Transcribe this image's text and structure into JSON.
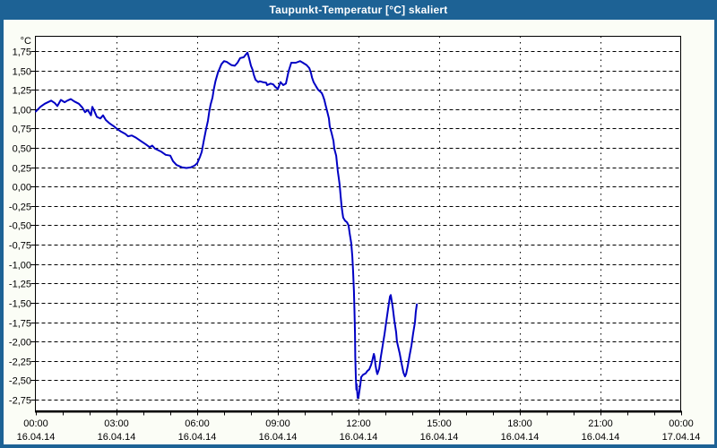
{
  "window": {
    "title": "Taupunkt-Temperatur [°C] skaliert"
  },
  "colors": {
    "titlebar": "#1d6295",
    "window_background": "#fbfdf6",
    "plot_background": "#ffffff",
    "line": "#0000c4",
    "grid": "#000000",
    "text": "#000000"
  },
  "chart_data": {
    "type": "line",
    "title": "Taupunkt-Temperatur [°C] skaliert",
    "unit_label": "°C",
    "xlabel": "",
    "ylabel": "°C",
    "ylim": [
      -2.75,
      1.75
    ],
    "ytick_step": 0.25,
    "grid": "dashed, horizontal and vertical",
    "legend_position": "none",
    "yticks": [
      {
        "v": 1.75,
        "label": "1,75"
      },
      {
        "v": 1.5,
        "label": "1,50"
      },
      {
        "v": 1.25,
        "label": "1,25"
      },
      {
        "v": 1.0,
        "label": "1,00"
      },
      {
        "v": 0.75,
        "label": "0,75"
      },
      {
        "v": 0.5,
        "label": "0,50"
      },
      {
        "v": 0.25,
        "label": "0,25"
      },
      {
        "v": 0.0,
        "label": "0,00"
      },
      {
        "v": -0.25,
        "label": "-0,25"
      },
      {
        "v": -0.5,
        "label": "-0,50"
      },
      {
        "v": -0.75,
        "label": "-0,75"
      },
      {
        "v": -1.0,
        "label": "-1,00"
      },
      {
        "v": -1.25,
        "label": "-1,25"
      },
      {
        "v": -1.5,
        "label": "-1,50"
      },
      {
        "v": -1.75,
        "label": "-1,75"
      },
      {
        "v": -2.0,
        "label": "-2,00"
      },
      {
        "v": -2.25,
        "label": "-2,25"
      },
      {
        "v": -2.5,
        "label": "-2,50"
      },
      {
        "v": -2.75,
        "label": "-2,75"
      }
    ],
    "xlim_hours": [
      0,
      24
    ],
    "x_minor_tick_hours": 1,
    "xticks": [
      {
        "hour": 0,
        "time": "00:00",
        "date": "16.04.14"
      },
      {
        "hour": 3,
        "time": "03:00",
        "date": "16.04.14"
      },
      {
        "hour": 6,
        "time": "06:00",
        "date": "16.04.14"
      },
      {
        "hour": 9,
        "time": "09:00",
        "date": "16.04.14"
      },
      {
        "hour": 12,
        "time": "12:00",
        "date": "16.04.14"
      },
      {
        "hour": 15,
        "time": "15:00",
        "date": "16.04.14"
      },
      {
        "hour": 18,
        "time": "18:00",
        "date": "16.04.14"
      },
      {
        "hour": 21,
        "time": "21:00",
        "date": "16.04.14"
      },
      {
        "hour": 24,
        "time": "00:00",
        "date": "17.04.14"
      }
    ],
    "series": [
      {
        "name": "Taupunkt-Temperatur",
        "color": "#0000c4",
        "points": [
          [
            0.0,
            0.97
          ],
          [
            0.17,
            1.03
          ],
          [
            0.33,
            1.07
          ],
          [
            0.57,
            1.11
          ],
          [
            0.7,
            1.08
          ],
          [
            0.8,
            1.04
          ],
          [
            0.93,
            1.12
          ],
          [
            1.07,
            1.09
          ],
          [
            1.17,
            1.11
          ],
          [
            1.3,
            1.13
          ],
          [
            1.43,
            1.1
          ],
          [
            1.6,
            1.07
          ],
          [
            1.73,
            1.02
          ],
          [
            1.83,
            0.96
          ],
          [
            1.93,
            0.99
          ],
          [
            2.05,
            0.92
          ],
          [
            2.1,
            1.03
          ],
          [
            2.17,
            0.98
          ],
          [
            2.27,
            0.9
          ],
          [
            2.4,
            0.88
          ],
          [
            2.5,
            0.92
          ],
          [
            2.6,
            0.86
          ],
          [
            2.73,
            0.82
          ],
          [
            2.9,
            0.78
          ],
          [
            3.0,
            0.75
          ],
          [
            3.17,
            0.71
          ],
          [
            3.33,
            0.68
          ],
          [
            3.43,
            0.65
          ],
          [
            3.57,
            0.66
          ],
          [
            3.73,
            0.63
          ],
          [
            3.9,
            0.59
          ],
          [
            4.07,
            0.55
          ],
          [
            4.23,
            0.51
          ],
          [
            4.33,
            0.53
          ],
          [
            4.43,
            0.49
          ],
          [
            4.67,
            0.45
          ],
          [
            4.83,
            0.41
          ],
          [
            5.0,
            0.4
          ],
          [
            5.1,
            0.33
          ],
          [
            5.23,
            0.28
          ],
          [
            5.43,
            0.25
          ],
          [
            5.6,
            0.24
          ],
          [
            5.77,
            0.25
          ],
          [
            5.9,
            0.27
          ],
          [
            6.0,
            0.3
          ],
          [
            6.1,
            0.38
          ],
          [
            6.17,
            0.45
          ],
          [
            6.25,
            0.6
          ],
          [
            6.33,
            0.74
          ],
          [
            6.4,
            0.85
          ],
          [
            6.45,
            0.97
          ],
          [
            6.5,
            1.06
          ],
          [
            6.57,
            1.15
          ],
          [
            6.62,
            1.26
          ],
          [
            6.68,
            1.36
          ],
          [
            6.77,
            1.47
          ],
          [
            6.9,
            1.58
          ],
          [
            7.0,
            1.62
          ],
          [
            7.1,
            1.61
          ],
          [
            7.27,
            1.57
          ],
          [
            7.4,
            1.56
          ],
          [
            7.5,
            1.6
          ],
          [
            7.6,
            1.66
          ],
          [
            7.73,
            1.67
          ],
          [
            7.8,
            1.7
          ],
          [
            7.87,
            1.73
          ],
          [
            7.93,
            1.66
          ],
          [
            8.0,
            1.56
          ],
          [
            8.07,
            1.5
          ],
          [
            8.1,
            1.45
          ],
          [
            8.17,
            1.38
          ],
          [
            8.27,
            1.35
          ],
          [
            8.33,
            1.36
          ],
          [
            8.43,
            1.35
          ],
          [
            8.57,
            1.34
          ],
          [
            8.6,
            1.31
          ],
          [
            8.73,
            1.33
          ],
          [
            8.83,
            1.32
          ],
          [
            8.9,
            1.29
          ],
          [
            9.0,
            1.26
          ],
          [
            9.1,
            1.35
          ],
          [
            9.2,
            1.31
          ],
          [
            9.3,
            1.33
          ],
          [
            9.4,
            1.49
          ],
          [
            9.5,
            1.6
          ],
          [
            9.67,
            1.6
          ],
          [
            9.83,
            1.62
          ],
          [
            9.93,
            1.6
          ],
          [
            10.07,
            1.57
          ],
          [
            10.17,
            1.53
          ],
          [
            10.23,
            1.47
          ],
          [
            10.27,
            1.41
          ],
          [
            10.33,
            1.35
          ],
          [
            10.43,
            1.29
          ],
          [
            10.5,
            1.25
          ],
          [
            10.57,
            1.23
          ],
          [
            10.63,
            1.21
          ],
          [
            10.67,
            1.18
          ],
          [
            10.73,
            1.12
          ],
          [
            10.77,
            1.06
          ],
          [
            10.83,
            0.98
          ],
          [
            10.9,
            0.88
          ],
          [
            10.93,
            0.78
          ],
          [
            11.0,
            0.69
          ],
          [
            11.07,
            0.59
          ],
          [
            11.1,
            0.49
          ],
          [
            11.17,
            0.4
          ],
          [
            11.2,
            0.3
          ],
          [
            11.23,
            0.2
          ],
          [
            11.27,
            0.1
          ],
          [
            11.3,
            0.02
          ],
          [
            11.33,
            -0.1
          ],
          [
            11.37,
            -0.25
          ],
          [
            11.4,
            -0.33
          ],
          [
            11.43,
            -0.4
          ],
          [
            11.5,
            -0.44
          ],
          [
            11.57,
            -0.46
          ],
          [
            11.63,
            -0.5
          ],
          [
            11.67,
            -0.6
          ],
          [
            11.73,
            -0.73
          ],
          [
            11.77,
            -0.9
          ],
          [
            11.8,
            -1.1
          ],
          [
            11.83,
            -1.35
          ],
          [
            11.85,
            -1.6
          ],
          [
            11.87,
            -1.9
          ],
          [
            11.88,
            -2.2
          ],
          [
            11.9,
            -2.45
          ],
          [
            11.92,
            -2.62
          ],
          [
            11.93,
            -2.55
          ],
          [
            11.97,
            -2.73
          ],
          [
            12.0,
            -2.72
          ],
          [
            12.07,
            -2.55
          ],
          [
            12.1,
            -2.46
          ],
          [
            12.17,
            -2.43
          ],
          [
            12.27,
            -2.41
          ],
          [
            12.33,
            -2.38
          ],
          [
            12.4,
            -2.36
          ],
          [
            12.47,
            -2.3
          ],
          [
            12.53,
            -2.22
          ],
          [
            12.57,
            -2.16
          ],
          [
            12.6,
            -2.2
          ],
          [
            12.63,
            -2.3
          ],
          [
            12.67,
            -2.38
          ],
          [
            12.7,
            -2.42
          ],
          [
            12.77,
            -2.35
          ],
          [
            12.83,
            -2.2
          ],
          [
            12.9,
            -2.05
          ],
          [
            12.97,
            -1.9
          ],
          [
            13.03,
            -1.75
          ],
          [
            13.1,
            -1.58
          ],
          [
            13.17,
            -1.42
          ],
          [
            13.2,
            -1.4
          ],
          [
            13.27,
            -1.55
          ],
          [
            13.33,
            -1.72
          ],
          [
            13.4,
            -1.88
          ],
          [
            13.43,
            -2.0
          ],
          [
            13.47,
            -2.06
          ],
          [
            13.53,
            -2.15
          ],
          [
            13.6,
            -2.28
          ],
          [
            13.67,
            -2.4
          ],
          [
            13.73,
            -2.45
          ],
          [
            13.77,
            -2.42
          ],
          [
            13.83,
            -2.32
          ],
          [
            13.9,
            -2.18
          ],
          [
            13.97,
            -2.05
          ],
          [
            14.03,
            -1.9
          ],
          [
            14.1,
            -1.75
          ],
          [
            14.13,
            -1.62
          ],
          [
            14.17,
            -1.52
          ]
        ]
      }
    ]
  }
}
